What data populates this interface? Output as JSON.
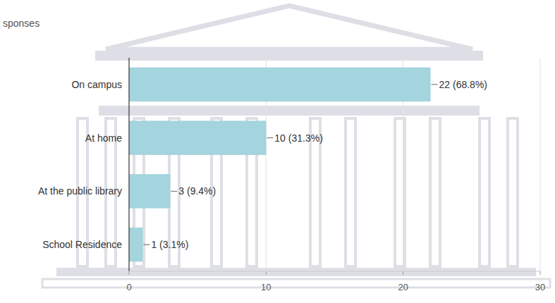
{
  "chart_data": {
    "type": "bar",
    "orientation": "horizontal",
    "subtitle": "sponses",
    "categories": [
      "On campus",
      "At home",
      "At the public library",
      "School Residence"
    ],
    "values": [
      22,
      10,
      3,
      1
    ],
    "value_labels": [
      "22 (68.8%)",
      "10 (31.3%)",
      "3 (9.4%)",
      "1 (3.1%)"
    ],
    "color": "#a4d4de",
    "xlim": [
      0,
      30
    ],
    "xticks": [
      0,
      10,
      20,
      30
    ],
    "grid": true,
    "data_labels": true
  }
}
